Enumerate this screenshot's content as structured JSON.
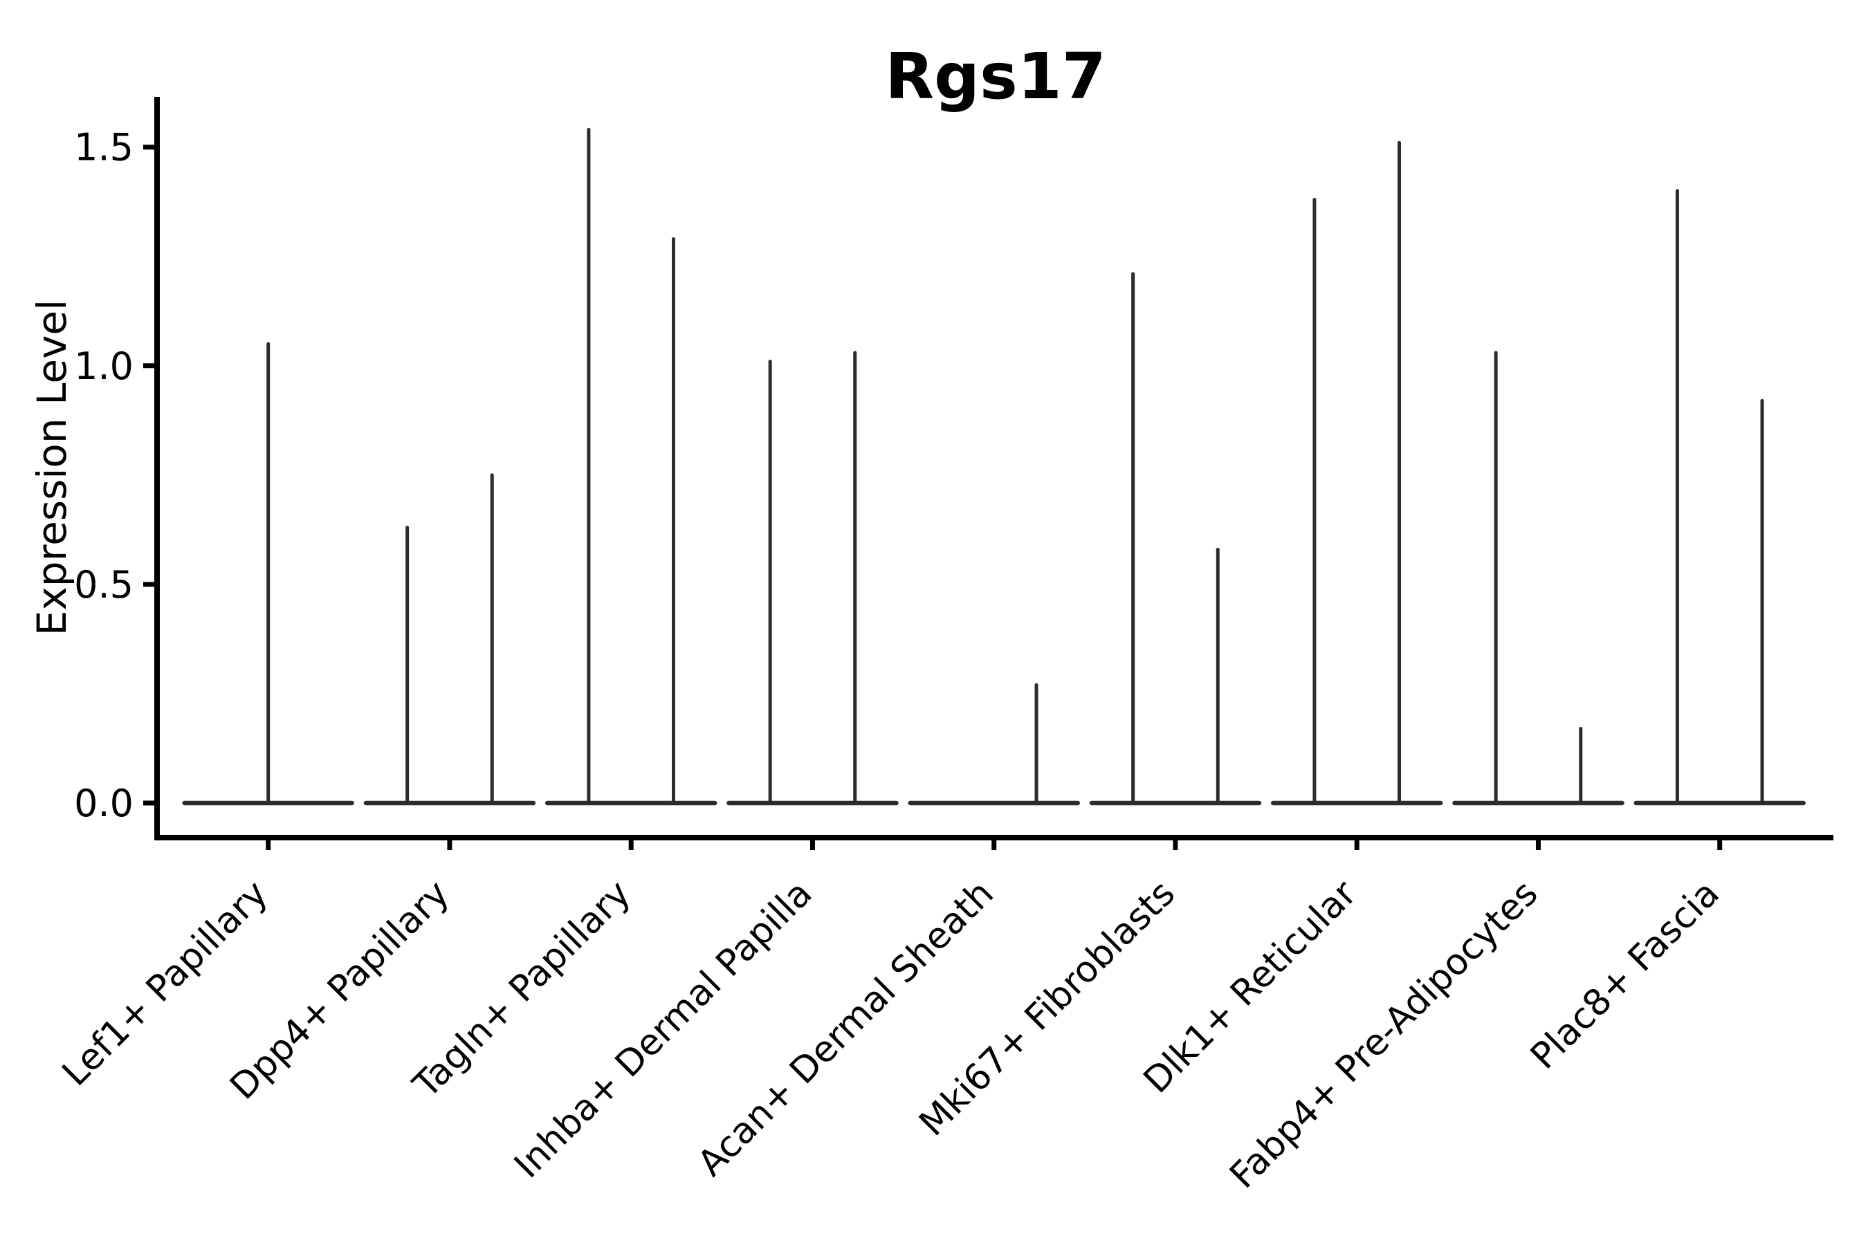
{
  "chart_data": {
    "type": "violin",
    "title": "Rgs17",
    "ylabel": "Expression Level",
    "xlabel": "",
    "ytick_labels": [
      "0.0",
      "0.5",
      "1.0",
      "1.5"
    ],
    "ytick_values": [
      0.0,
      0.5,
      1.0,
      1.5
    ],
    "ylim": [
      -0.08,
      1.62
    ],
    "grid": false,
    "legend": "none",
    "xtick_rotation_deg": 45,
    "split_violins_per_category": 2,
    "colors": {
      "violin_stroke": "#2c2c2c",
      "axis": "#000000",
      "text": "#000000",
      "background": "#ffffff"
    },
    "categories": [
      {
        "label": "Lef1+ Papillary",
        "spikes": [
          {
            "side": "center",
            "value": 1.05
          }
        ]
      },
      {
        "label": "Dpp4+ Papillary",
        "spikes": [
          {
            "side": "left",
            "value": 0.63
          },
          {
            "side": "right",
            "value": 0.75
          }
        ]
      },
      {
        "label": "Tagln+ Papillary",
        "spikes": [
          {
            "side": "left",
            "value": 1.54
          },
          {
            "side": "right",
            "value": 1.29
          }
        ]
      },
      {
        "label": "Inhba+ Dermal Papilla",
        "spikes": [
          {
            "side": "left",
            "value": 1.01
          },
          {
            "side": "right",
            "value": 1.03
          }
        ]
      },
      {
        "label": "Acan+ Dermal Sheath",
        "spikes": [
          {
            "side": "right",
            "value": 0.27
          }
        ]
      },
      {
        "label": "Mki67+ Fibroblasts",
        "spikes": [
          {
            "side": "left",
            "value": 1.21
          },
          {
            "side": "right",
            "value": 0.58
          }
        ]
      },
      {
        "label": "Dlk1+ Reticular",
        "spikes": [
          {
            "side": "left",
            "value": 1.38
          },
          {
            "side": "right",
            "value": 1.51
          }
        ]
      },
      {
        "label": "Fabp4+ Pre-Adipocytes",
        "spikes": [
          {
            "side": "left",
            "value": 1.03
          },
          {
            "side": "right",
            "value": 0.17
          }
        ]
      },
      {
        "label": "Plac8+ Fascia",
        "spikes": [
          {
            "side": "left",
            "value": 1.4
          },
          {
            "side": "right",
            "value": 0.92
          }
        ]
      }
    ]
  }
}
